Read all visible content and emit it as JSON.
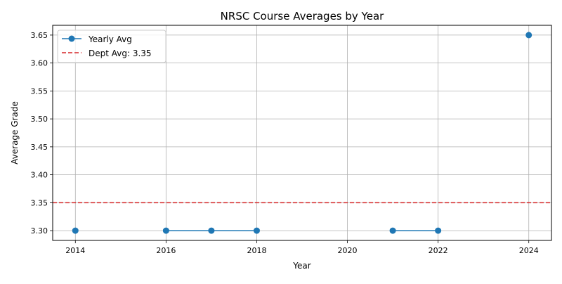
{
  "chart_data": {
    "type": "line",
    "title": "NRSC Course Averages by Year",
    "xlabel": "Year",
    "ylabel": "Average Grade",
    "xlim": [
      2013.5,
      2024.5
    ],
    "ylim": [
      3.2825,
      3.6675
    ],
    "x_ticks": [
      2014,
      2016,
      2018,
      2020,
      2022,
      2024
    ],
    "y_ticks": [
      3.3,
      3.35,
      3.4,
      3.45,
      3.5,
      3.55,
      3.6,
      3.65
    ],
    "grid": true,
    "legend_position": "top-left",
    "series": [
      {
        "name": "Yearly Avg",
        "color": "#1f77b4",
        "marker": "circle",
        "points": [
          {
            "x": 2014,
            "y": 3.3
          },
          {
            "x": 2015,
            "y": null
          },
          {
            "x": 2016,
            "y": 3.3
          },
          {
            "x": 2017,
            "y": 3.3
          },
          {
            "x": 2018,
            "y": 3.3
          },
          {
            "x": 2019,
            "y": null
          },
          {
            "x": 2020,
            "y": null
          },
          {
            "x": 2021,
            "y": 3.3
          },
          {
            "x": 2022,
            "y": 3.3
          },
          {
            "x": 2023,
            "y": null
          },
          {
            "x": 2024,
            "y": 3.65
          }
        ]
      }
    ],
    "reference_line": {
      "name": "Dept Avg: 3.35",
      "value": 3.35,
      "color": "#d62728",
      "style": "dashed"
    }
  }
}
